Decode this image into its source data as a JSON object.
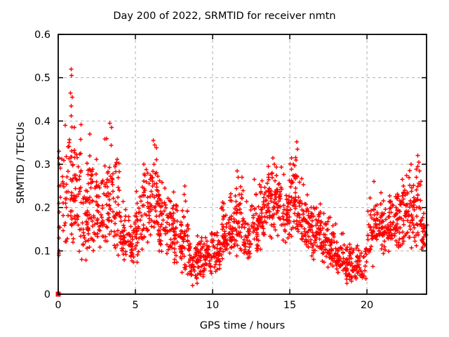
{
  "chart_data": {
    "type": "scatter",
    "title": "Day 200 of 2022, SRMTID for receiver nmtn",
    "xlabel": "GPS time / hours",
    "ylabel": "SRMTID / TECUs",
    "xlim": [
      0,
      23.86
    ],
    "ylim": [
      0,
      0.6
    ],
    "xticks": [
      {
        "v": 0,
        "label": "0"
      },
      {
        "v": 5,
        "label": "5"
      },
      {
        "v": 10,
        "label": "10"
      },
      {
        "v": 15,
        "label": "15"
      },
      {
        "v": 20,
        "label": "20"
      }
    ],
    "yticks": [
      {
        "v": 0.0,
        "label": "0"
      },
      {
        "v": 0.1,
        "label": "0.1"
      },
      {
        "v": 0.2,
        "label": "0.2"
      },
      {
        "v": 0.3,
        "label": "0.3"
      },
      {
        "v": 0.4,
        "label": "0.4"
      },
      {
        "v": 0.5,
        "label": "0.5"
      },
      {
        "v": 0.6,
        "label": "0.6"
      }
    ],
    "grid": true,
    "grid_style": "dashed",
    "grid_color": "#b0b0b0",
    "border_color": "#000000",
    "marker": "plus",
    "marker_color": "#ff0000",
    "marker_size_px": 7,
    "legend": "none",
    "origin_cluster": {
      "x": 0,
      "y": 0,
      "style": "filled-square",
      "note": "overlapping points at exactly (0,0)"
    },
    "edge_points": [
      [
        0.04,
        0.09
      ],
      [
        0.05,
        0.095
      ],
      [
        0.06,
        0.1
      ],
      [
        0.04,
        0.13
      ],
      [
        0.05,
        0.155
      ],
      [
        0.06,
        0.19
      ],
      [
        0.04,
        0.21
      ],
      [
        0.05,
        0.25
      ],
      [
        0.06,
        0.3
      ],
      [
        0.05,
        0.315
      ],
      [
        0.04,
        0.33
      ]
    ],
    "notable_points": [
      [
        0.85,
        0.52
      ],
      [
        0.87,
        0.505
      ],
      [
        0.8,
        0.465
      ],
      [
        0.92,
        0.455
      ],
      [
        0.85,
        0.435
      ],
      [
        0.83,
        0.412
      ],
      [
        0.45,
        0.39
      ],
      [
        1.05,
        0.385
      ],
      [
        2.05,
        0.37
      ],
      [
        3.35,
        0.395
      ],
      [
        3.45,
        0.385
      ],
      [
        6.15,
        0.355
      ],
      [
        6.25,
        0.345
      ],
      [
        8.2,
        0.25
      ],
      [
        8.15,
        0.23
      ],
      [
        8.25,
        0.215
      ],
      [
        11.6,
        0.285
      ],
      [
        11.65,
        0.27
      ],
      [
        13.9,
        0.315
      ],
      [
        14.0,
        0.3
      ],
      [
        15.45,
        0.352
      ],
      [
        15.5,
        0.335
      ],
      [
        15.4,
        0.31
      ],
      [
        20.45,
        0.26
      ],
      [
        22.85,
        0.3
      ],
      [
        23.3,
        0.32
      ],
      [
        23.35,
        0.305
      ],
      [
        23.3,
        0.295
      ],
      [
        23.4,
        0.285
      ],
      [
        23.2,
        0.27
      ],
      [
        23.5,
        0.26
      ],
      [
        8.7,
        0.02
      ],
      [
        9.0,
        0.025
      ],
      [
        18.7,
        0.025
      ],
      [
        19.0,
        0.03
      ]
    ],
    "density_bins": [
      [
        0.1,
        0.5,
        0.1,
        0.39,
        18,
        0.35
      ],
      [
        0.5,
        1.0,
        0.1,
        0.4,
        42,
        0.45
      ],
      [
        1.0,
        1.5,
        0.08,
        0.4,
        45,
        0.4
      ],
      [
        1.5,
        2.0,
        0.07,
        0.33,
        42,
        0.35
      ],
      [
        2.0,
        2.5,
        0.08,
        0.37,
        40,
        0.35
      ],
      [
        2.5,
        3.0,
        0.08,
        0.31,
        40,
        0.35
      ],
      [
        3.0,
        3.5,
        0.09,
        0.4,
        42,
        0.4
      ],
      [
        3.5,
        4.0,
        0.08,
        0.33,
        38,
        0.35
      ],
      [
        4.0,
        4.5,
        0.07,
        0.22,
        36,
        0.35
      ],
      [
        4.5,
        5.0,
        0.065,
        0.2,
        36,
        0.35
      ],
      [
        5.0,
        5.5,
        0.07,
        0.26,
        36,
        0.35
      ],
      [
        5.5,
        6.0,
        0.1,
        0.34,
        40,
        0.4
      ],
      [
        6.0,
        6.5,
        0.1,
        0.36,
        42,
        0.4
      ],
      [
        6.5,
        7.0,
        0.09,
        0.3,
        40,
        0.35
      ],
      [
        7.0,
        7.5,
        0.08,
        0.27,
        38,
        0.35
      ],
      [
        7.5,
        8.0,
        0.06,
        0.22,
        38,
        0.3
      ],
      [
        8.0,
        8.5,
        0.04,
        0.25,
        38,
        0.3
      ],
      [
        8.5,
        9.0,
        0.025,
        0.14,
        38,
        0.35
      ],
      [
        9.0,
        9.5,
        0.03,
        0.15,
        40,
        0.35
      ],
      [
        9.5,
        10.0,
        0.04,
        0.16,
        40,
        0.35
      ],
      [
        10.0,
        10.5,
        0.05,
        0.16,
        40,
        0.35
      ],
      [
        10.5,
        11.0,
        0.06,
        0.22,
        40,
        0.35
      ],
      [
        11.0,
        11.5,
        0.07,
        0.25,
        40,
        0.4
      ],
      [
        11.5,
        12.0,
        0.08,
        0.285,
        40,
        0.4
      ],
      [
        12.0,
        12.5,
        0.07,
        0.22,
        40,
        0.35
      ],
      [
        12.5,
        13.0,
        0.08,
        0.27,
        40,
        0.35
      ],
      [
        13.0,
        13.5,
        0.09,
        0.28,
        40,
        0.4
      ],
      [
        13.5,
        14.0,
        0.11,
        0.32,
        42,
        0.45
      ],
      [
        14.0,
        14.5,
        0.11,
        0.31,
        42,
        0.45
      ],
      [
        14.5,
        15.0,
        0.1,
        0.3,
        40,
        0.4
      ],
      [
        15.0,
        15.5,
        0.11,
        0.36,
        42,
        0.45
      ],
      [
        15.5,
        16.0,
        0.1,
        0.3,
        38,
        0.4
      ],
      [
        16.0,
        16.5,
        0.08,
        0.24,
        40,
        0.35
      ],
      [
        16.5,
        17.0,
        0.07,
        0.23,
        40,
        0.35
      ],
      [
        17.0,
        17.5,
        0.06,
        0.2,
        40,
        0.3
      ],
      [
        17.5,
        18.0,
        0.05,
        0.18,
        40,
        0.3
      ],
      [
        18.0,
        18.5,
        0.04,
        0.16,
        40,
        0.3
      ],
      [
        18.5,
        19.0,
        0.02,
        0.14,
        38,
        0.3
      ],
      [
        19.0,
        19.5,
        0.03,
        0.13,
        34,
        0.3
      ],
      [
        19.5,
        20.0,
        0.03,
        0.12,
        22,
        0.3
      ],
      [
        20.0,
        20.5,
        0.05,
        0.26,
        34,
        0.35
      ],
      [
        20.5,
        21.0,
        0.08,
        0.25,
        40,
        0.4
      ],
      [
        21.0,
        21.5,
        0.09,
        0.24,
        40,
        0.4
      ],
      [
        21.5,
        22.0,
        0.1,
        0.25,
        40,
        0.4
      ],
      [
        22.0,
        22.5,
        0.1,
        0.27,
        40,
        0.4
      ],
      [
        22.5,
        23.0,
        0.1,
        0.3,
        40,
        0.4
      ],
      [
        23.0,
        23.5,
        0.1,
        0.32,
        36,
        0.4
      ],
      [
        23.5,
        23.9,
        0.09,
        0.21,
        24,
        0.4
      ]
    ]
  }
}
